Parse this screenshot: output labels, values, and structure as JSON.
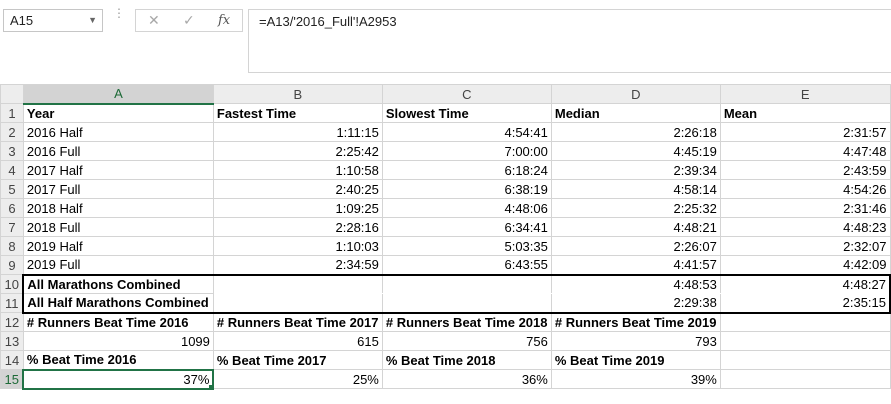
{
  "formula_bar": {
    "name_box": "A15",
    "cancel_glyph": "✕",
    "enter_glyph": "✓",
    "fx_glyph": "fx",
    "formula": "=A13/'2016_Full'!A2953"
  },
  "columns": [
    "A",
    "B",
    "C",
    "D",
    "E"
  ],
  "selected_column": "A",
  "selected_row": "15",
  "rows": [
    {
      "num": "1",
      "cells": [
        "Year",
        "Fastest Time",
        "Slowest Time",
        "Median",
        "Mean"
      ]
    },
    {
      "num": "2",
      "cells": [
        "2016 Half",
        "1:11:15",
        "4:54:41",
        "2:26:18",
        "2:31:57"
      ]
    },
    {
      "num": "3",
      "cells": [
        "2016 Full",
        "2:25:42",
        "7:00:00",
        "4:45:19",
        "4:47:48"
      ]
    },
    {
      "num": "4",
      "cells": [
        "2017 Half",
        "1:10:58",
        "6:18:24",
        "2:39:34",
        "2:43:59"
      ]
    },
    {
      "num": "5",
      "cells": [
        "2017 Full",
        "2:40:25",
        "6:38:19",
        "4:58:14",
        "4:54:26"
      ]
    },
    {
      "num": "6",
      "cells": [
        "2018 Half",
        "1:09:25",
        "4:48:06",
        "2:25:32",
        "2:31:46"
      ]
    },
    {
      "num": "7",
      "cells": [
        "2018 Full",
        "2:28:16",
        "6:34:41",
        "4:48:21",
        "4:48:23"
      ]
    },
    {
      "num": "8",
      "cells": [
        "2019 Half",
        "1:10:03",
        "5:03:35",
        "2:26:07",
        "2:32:07"
      ]
    },
    {
      "num": "9",
      "cells": [
        "2019 Full",
        "2:34:59",
        "6:43:55",
        "4:41:57",
        "4:42:09"
      ]
    },
    {
      "num": "10",
      "cells": [
        "All Marathons Combined",
        "",
        "",
        "4:48:53",
        "4:48:27"
      ]
    },
    {
      "num": "11",
      "cells": [
        "All Half Marathons Combined",
        "",
        "",
        "2:29:38",
        "2:35:15"
      ]
    },
    {
      "num": "12",
      "cells": [
        "# Runners Beat Time 2016",
        "# Runners Beat Time 2017",
        "# Runners Beat Time 2018",
        "# Runners Beat Time 2019",
        ""
      ]
    },
    {
      "num": "13",
      "cells": [
        "1099",
        "615",
        "756",
        "793",
        ""
      ]
    },
    {
      "num": "14",
      "cells": [
        "% Beat Time 2016",
        "% Beat Time 2017",
        "% Beat Time 2018",
        "% Beat Time 2019",
        ""
      ]
    },
    {
      "num": "15",
      "cells": [
        "37%",
        "25%",
        "36%",
        "39%",
        ""
      ]
    }
  ]
}
